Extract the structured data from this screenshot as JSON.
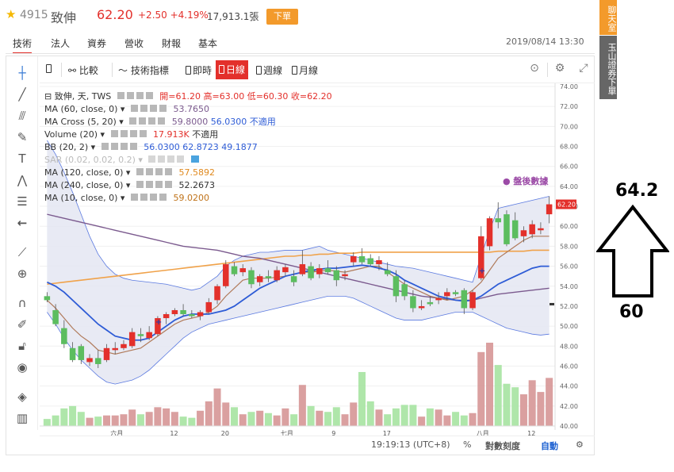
{
  "header": {
    "star_icon": "star-icon",
    "code": "4915",
    "name": "致伸",
    "price": "62.20",
    "change": "+2.50 +4.19%",
    "volume": "17,913.1張",
    "order_button": "下單"
  },
  "side": {
    "chat": "聊天室",
    "broker": "玉山證券下單"
  },
  "tabs": [
    "技術",
    "法人",
    "資券",
    "營收",
    "財報",
    "基本"
  ],
  "datetime": "2019/08/14 13:30",
  "toolbar": {
    "compare": "比較",
    "indicators": "技術指標",
    "realtime": "即時",
    "daily": "日線",
    "weekly": "週線",
    "monthly": "月線"
  },
  "legend": {
    "main": "致伸, 天, TWS",
    "ohlc": "開=61.20 高=63.00 低=60.30 收=62.20",
    "after_hours": "● 盤後數據",
    "ma60": {
      "label": "MA (60, close, 0)",
      "v1": "53.7650"
    },
    "macross": {
      "label": "MA Cross (5, 20)",
      "v1": "59.8000",
      "v2": "56.0300",
      "v3": "不適用"
    },
    "volume": {
      "label": "Volume (20)",
      "v1": "17.913K",
      "v2": "不適用"
    },
    "bb": {
      "label": "BB (20, 2)",
      "v1": "56.0300",
      "v2": "62.8723",
      "v3": "49.1877"
    },
    "sar": {
      "label": "SAR (0.02, 0.02, 0.2)"
    },
    "ma120": {
      "label": "MA (120, close, 0)",
      "v1": "57.5892"
    },
    "ma240": {
      "label": "MA (240, close, 0)",
      "v1": "52.2673"
    },
    "ma10": {
      "label": "MA (10, close, 0)",
      "v1": "59.0200"
    }
  },
  "axis": {
    "y_ticks": [
      "74.00",
      "72.00",
      "70.00",
      "68.00",
      "66.00",
      "64.00",
      "62.00",
      "60.00",
      "58.00",
      "56.00",
      "54.00",
      "52.00",
      "50.00",
      "48.00",
      "46.00",
      "44.00",
      "42.00",
      "40.00"
    ],
    "current_price_tag": "62.20",
    "x_ticks": [
      "六月",
      "12",
      "20",
      "七月",
      "9",
      "17",
      "八月",
      "12"
    ]
  },
  "bottom_bar": {
    "time": "19:19:13 (UTC+8)",
    "percent": "%",
    "log": "對數刻度",
    "auto": "自動"
  },
  "annotation": {
    "top_value": "64.2",
    "bottom_value": "60"
  },
  "colors": {
    "up": "#e3302b",
    "down": "#5cbd5f",
    "accent_orange": "#f39a2b",
    "ma60": "#7b5a8e",
    "ma_fast": "#2e5cd6",
    "ma120": "#f0a24a",
    "bb_fill": "#e4e6f2",
    "bb_line": "#5b7ae0"
  },
  "chart_data": {
    "type": "candlestick",
    "ylim": [
      40,
      74
    ],
    "candles": [
      {
        "o": 53.0,
        "h": 53.4,
        "l": 52.4,
        "c": 52.6
      },
      {
        "o": 51.6,
        "h": 52.2,
        "l": 50.0,
        "c": 50.2
      },
      {
        "o": 49.8,
        "h": 50.6,
        "l": 47.8,
        "c": 48.2
      },
      {
        "o": 47.8,
        "h": 48.4,
        "l": 46.4,
        "c": 46.6
      },
      {
        "o": 48.0,
        "h": 48.2,
        "l": 46.2,
        "c": 46.6
      },
      {
        "o": 46.4,
        "h": 47.2,
        "l": 46.0,
        "c": 46.8
      },
      {
        "o": 46.8,
        "h": 47.6,
        "l": 45.8,
        "c": 46.2
      },
      {
        "o": 46.6,
        "h": 48.2,
        "l": 46.4,
        "c": 47.8
      },
      {
        "o": 47.6,
        "h": 48.4,
        "l": 47.2,
        "c": 47.8
      },
      {
        "o": 47.8,
        "h": 48.6,
        "l": 47.6,
        "c": 48.2
      },
      {
        "o": 48.0,
        "h": 49.8,
        "l": 47.8,
        "c": 49.4
      },
      {
        "o": 49.2,
        "h": 49.8,
        "l": 48.4,
        "c": 49.0
      },
      {
        "o": 48.8,
        "h": 50.0,
        "l": 48.6,
        "c": 49.4
      },
      {
        "o": 49.2,
        "h": 51.0,
        "l": 49.0,
        "c": 50.8
      },
      {
        "o": 50.8,
        "h": 51.4,
        "l": 50.2,
        "c": 51.2
      },
      {
        "o": 51.2,
        "h": 51.8,
        "l": 51.0,
        "c": 51.6
      },
      {
        "o": 51.6,
        "h": 52.2,
        "l": 51.0,
        "c": 51.2
      },
      {
        "o": 51.2,
        "h": 51.6,
        "l": 50.8,
        "c": 51.0
      },
      {
        "o": 51.0,
        "h": 51.6,
        "l": 50.6,
        "c": 51.4
      },
      {
        "o": 51.4,
        "h": 52.8,
        "l": 51.2,
        "c": 52.4
      },
      {
        "o": 52.6,
        "h": 54.2,
        "l": 52.2,
        "c": 54.0
      },
      {
        "o": 54.0,
        "h": 56.6,
        "l": 53.8,
        "c": 56.2
      },
      {
        "o": 56.0,
        "h": 56.4,
        "l": 55.0,
        "c": 55.2
      },
      {
        "o": 55.4,
        "h": 56.2,
        "l": 55.0,
        "c": 55.8
      },
      {
        "o": 55.6,
        "h": 55.9,
        "l": 53.8,
        "c": 54.2
      },
      {
        "o": 54.4,
        "h": 55.2,
        "l": 54.0,
        "c": 55.0
      },
      {
        "o": 55.0,
        "h": 55.6,
        "l": 54.4,
        "c": 54.8
      },
      {
        "o": 54.6,
        "h": 56.0,
        "l": 54.4,
        "c": 55.6
      },
      {
        "o": 55.4,
        "h": 56.2,
        "l": 55.0,
        "c": 55.9
      },
      {
        "o": 55.0,
        "h": 55.6,
        "l": 54.0,
        "c": 54.4
      },
      {
        "o": 55.2,
        "h": 57.6,
        "l": 55.0,
        "c": 56.2
      },
      {
        "o": 56.0,
        "h": 56.4,
        "l": 54.6,
        "c": 54.8
      },
      {
        "o": 55.2,
        "h": 56.2,
        "l": 54.8,
        "c": 55.8
      },
      {
        "o": 55.8,
        "h": 56.6,
        "l": 55.2,
        "c": 55.4
      },
      {
        "o": 55.6,
        "h": 56.0,
        "l": 54.0,
        "c": 54.6
      },
      {
        "o": 55.0,
        "h": 55.6,
        "l": 54.6,
        "c": 55.2
      },
      {
        "o": 56.4,
        "h": 57.4,
        "l": 56.0,
        "c": 57.0
      },
      {
        "o": 57.0,
        "h": 57.8,
        "l": 56.2,
        "c": 56.4
      },
      {
        "o": 56.8,
        "h": 57.2,
        "l": 56.0,
        "c": 56.2
      },
      {
        "o": 56.2,
        "h": 57.0,
        "l": 55.6,
        "c": 56.6
      },
      {
        "o": 55.6,
        "h": 56.4,
        "l": 55.0,
        "c": 55.2
      },
      {
        "o": 55.0,
        "h": 55.6,
        "l": 52.4,
        "c": 53.0
      },
      {
        "o": 54.2,
        "h": 54.6,
        "l": 52.6,
        "c": 53.0
      },
      {
        "o": 53.0,
        "h": 53.6,
        "l": 51.4,
        "c": 51.8
      },
      {
        "o": 51.8,
        "h": 52.6,
        "l": 51.6,
        "c": 52.0
      },
      {
        "o": 52.4,
        "h": 53.0,
        "l": 52.0,
        "c": 52.2
      },
      {
        "o": 52.6,
        "h": 53.4,
        "l": 52.2,
        "c": 52.8
      },
      {
        "o": 53.0,
        "h": 53.8,
        "l": 52.6,
        "c": 53.4
      },
      {
        "o": 53.4,
        "h": 53.6,
        "l": 53.0,
        "c": 53.2
      },
      {
        "o": 53.6,
        "h": 53.8,
        "l": 51.2,
        "c": 51.8
      },
      {
        "o": 51.8,
        "h": 53.6,
        "l": 51.6,
        "c": 53.4
      },
      {
        "o": 54.8,
        "h": 60.0,
        "l": 54.6,
        "c": 59.0
      },
      {
        "o": 58.0,
        "h": 61.0,
        "l": 57.6,
        "c": 60.8
      },
      {
        "o": 60.8,
        "h": 62.4,
        "l": 59.8,
        "c": 60.4
      },
      {
        "o": 61.2,
        "h": 61.6,
        "l": 58.0,
        "c": 58.2
      },
      {
        "o": 60.6,
        "h": 61.4,
        "l": 58.6,
        "c": 58.8
      },
      {
        "o": 59.0,
        "h": 60.0,
        "l": 58.4,
        "c": 59.6
      },
      {
        "o": 59.2,
        "h": 60.6,
        "l": 58.8,
        "c": 60.2
      },
      {
        "o": 59.6,
        "h": 60.4,
        "l": 59.2,
        "c": 59.8
      },
      {
        "o": 61.2,
        "h": 63.0,
        "l": 60.3,
        "c": 62.2
      }
    ],
    "volumes": [
      1.2,
      1.8,
      3.0,
      3.4,
      2.4,
      1.4,
      1.6,
      1.8,
      1.8,
      2.0,
      2.8,
      2.0,
      2.4,
      3.2,
      3.0,
      2.4,
      1.6,
      1.4,
      2.6,
      4.2,
      6.4,
      4.0,
      3.2,
      2.0,
      2.4,
      2.6,
      2.2,
      1.8,
      3.0,
      2.0,
      7.0,
      3.4,
      2.6,
      2.4,
      3.2,
      2.0,
      4.0,
      9.2,
      4.2,
      2.8,
      2.0,
      3.0,
      3.6,
      3.6,
      1.6,
      3.0,
      2.8,
      1.8,
      2.4,
      1.8,
      2.2,
      12.6,
      14.2,
      10.4,
      7.2,
      6.6,
      5.4,
      7.8,
      5.8,
      8.2
    ],
    "ma_fast": [
      54.4,
      54.0,
      53.4,
      52.6,
      51.8,
      51.0,
      50.2,
      49.6,
      49.0,
      48.8,
      48.6,
      48.6,
      48.8,
      49.4,
      50.0,
      50.6,
      51.0,
      51.2,
      51.2,
      51.2,
      51.4,
      51.6,
      52.0,
      52.6,
      53.2,
      53.8,
      54.2,
      54.6,
      55.0,
      55.2,
      55.4,
      55.6,
      55.7,
      55.8,
      55.8,
      55.9,
      56.0,
      56.1,
      56.0,
      55.8,
      55.6,
      55.2,
      54.6,
      54.2,
      53.8,
      53.4,
      53.0,
      52.8,
      52.6,
      52.5,
      52.6,
      53.0,
      53.6,
      54.2,
      54.6,
      55.0,
      55.4,
      55.8,
      56.0,
      56.0
    ],
    "ma_brown": [
      52.6,
      51.8,
      50.8,
      49.8,
      49.0,
      48.4,
      47.6,
      47.4,
      47.2,
      47.4,
      47.6,
      47.8,
      48.4,
      49.0,
      49.6,
      50.2,
      50.6,
      50.8,
      51.0,
      51.4,
      52.0,
      53.0,
      53.8,
      54.6,
      54.8,
      54.8,
      54.8,
      54.9,
      55.0,
      55.2,
      55.4,
      55.4,
      55.5,
      55.6,
      55.5,
      55.4,
      55.6,
      55.8,
      56.0,
      56.0,
      55.4,
      54.8,
      54.2,
      53.8,
      53.4,
      53.0,
      52.8,
      52.6,
      52.8,
      53.0,
      53.6,
      54.4,
      55.6,
      56.8,
      57.4,
      58.0,
      58.6,
      59.0,
      59.0,
      59.0
    ],
    "ma60": [
      61.2,
      61.0,
      60.8,
      60.6,
      60.4,
      60.2,
      60.0,
      59.8,
      59.6,
      59.4,
      59.2,
      59.0,
      58.8,
      58.6,
      58.4,
      58.2,
      58.0,
      57.9,
      57.8,
      57.7,
      57.6,
      57.4,
      57.2,
      57.0,
      56.9,
      56.8,
      56.6,
      56.4,
      56.2,
      56.0,
      55.8,
      55.6,
      55.4,
      55.2,
      55.0,
      54.8,
      54.6,
      54.4,
      54.2,
      54.0,
      53.8,
      53.6,
      53.4,
      53.2,
      53.0,
      52.9,
      52.8,
      52.7,
      52.6,
      52.6,
      52.6,
      52.8,
      53.0,
      53.2,
      53.3,
      53.4,
      53.5,
      53.6,
      53.7,
      53.8
    ],
    "ma120": [
      54.2,
      54.3,
      54.4,
      54.5,
      54.6,
      54.7,
      54.8,
      54.9,
      55.0,
      55.1,
      55.2,
      55.3,
      55.4,
      55.5,
      55.6,
      55.7,
      55.8,
      55.9,
      56.0,
      56.1,
      56.2,
      56.3,
      56.4,
      56.5,
      56.6,
      56.7,
      56.8,
      56.9,
      57.0,
      57.0,
      57.1,
      57.1,
      57.2,
      57.2,
      57.3,
      57.3,
      57.3,
      57.4,
      57.4,
      57.4,
      57.4,
      57.4,
      57.4,
      57.4,
      57.4,
      57.4,
      57.4,
      57.4,
      57.4,
      57.4,
      57.4,
      57.4,
      57.4,
      57.5,
      57.5,
      57.5,
      57.5,
      57.6,
      57.6,
      57.6
    ],
    "bb_upper": [
      68.6,
      67.2,
      65.4,
      63.4,
      61.2,
      59.0,
      57.2,
      56.0,
      55.2,
      54.8,
      54.6,
      54.5,
      54.4,
      54.3,
      54.2,
      54.0,
      53.8,
      53.6,
      53.8,
      54.4,
      55.0,
      56.0,
      56.6,
      57.0,
      57.2,
      57.4,
      57.4,
      57.5,
      57.6,
      57.6,
      57.6,
      57.8,
      58.0,
      57.6,
      57.4,
      57.2,
      57.0,
      56.8,
      56.6,
      56.4,
      56.2,
      56.0,
      55.9,
      55.8,
      55.6,
      55.4,
      55.2,
      55.0,
      54.8,
      54.6,
      54.4,
      57.0,
      59.6,
      61.8,
      62.0,
      62.2,
      62.4,
      62.6,
      62.8,
      63.0
    ],
    "bb_lower": [
      51.4,
      50.2,
      48.8,
      47.6,
      46.6,
      45.8,
      45.0,
      44.4,
      44.2,
      44.4,
      44.6,
      45.0,
      45.6,
      46.4,
      47.2,
      48.0,
      48.8,
      49.4,
      49.8,
      50.2,
      50.4,
      50.6,
      50.8,
      51.0,
      51.2,
      51.4,
      51.6,
      51.8,
      52.0,
      52.2,
      52.4,
      52.6,
      52.8,
      53.0,
      53.0,
      53.0,
      52.8,
      52.4,
      52.0,
      51.6,
      51.2,
      50.8,
      50.6,
      50.6,
      50.6,
      50.8,
      51.0,
      51.2,
      51.4,
      51.4,
      51.4,
      51.0,
      50.6,
      50.2,
      49.8,
      49.6,
      49.4,
      49.2,
      49.1,
      49.2
    ]
  }
}
